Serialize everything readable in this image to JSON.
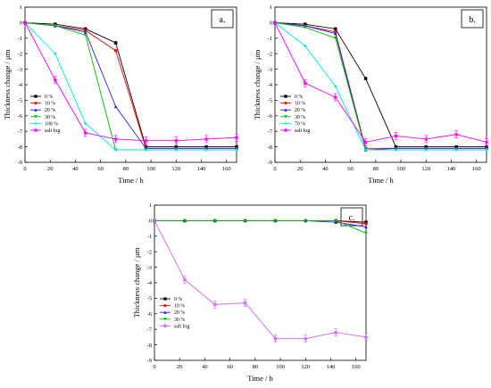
{
  "chart_data": [
    {
      "panel_label": "a.",
      "type": "line",
      "xlabel": "Time / h",
      "ylabel": "Thickness change / µm",
      "xlim": [
        0,
        168
      ],
      "ylim": [
        -9,
        1
      ],
      "x_ticks": [
        0,
        20,
        40,
        60,
        80,
        100,
        120,
        140,
        160
      ],
      "y_ticks": [
        1,
        0,
        -1,
        -2,
        -3,
        -4,
        -5,
        -6,
        -7,
        -8,
        -9
      ],
      "legend_position": "lower-left",
      "series": [
        {
          "name": "0 %",
          "color": "#000000",
          "marker": "square",
          "x": [
            0,
            24,
            48,
            72,
            96,
            120,
            144,
            168
          ],
          "y": [
            0,
            -0.1,
            -0.4,
            -1.3,
            -8.0,
            -8.0,
            -8.0,
            -8.0
          ]
        },
        {
          "name": "10 %",
          "color": "#ff0000",
          "marker": "circle",
          "x": [
            0,
            24,
            48,
            72,
            96,
            120,
            144,
            168
          ],
          "y": [
            0,
            -0.2,
            -0.5,
            -1.8,
            -8.1,
            -8.1,
            -8.1,
            -8.1
          ]
        },
        {
          "name": "20 %",
          "color": "#2020ff",
          "marker": "triangle-up",
          "x": [
            0,
            24,
            48,
            72,
            96,
            120,
            144,
            168
          ],
          "y": [
            0,
            -0.2,
            -0.6,
            -5.4,
            -8.1,
            -8.1,
            -8.1,
            -8.1
          ]
        },
        {
          "name": "30 %",
          "color": "#00bb00",
          "marker": "triangle-down",
          "x": [
            0,
            24,
            48,
            72,
            96,
            120,
            144,
            168
          ],
          "y": [
            0,
            -0.2,
            -0.8,
            -8.2,
            -8.2,
            -8.2,
            -8.2,
            -8.2
          ]
        },
        {
          "name": "100 %",
          "color": "#00e5ee",
          "marker": "diamond",
          "x": [
            0,
            24,
            48,
            72,
            96,
            120,
            144,
            168
          ],
          "y": [
            0,
            -2.0,
            -6.5,
            -8.2,
            -8.2,
            -8.2,
            -8.2,
            -8.2
          ]
        },
        {
          "name": "salt fog",
          "color": "#ff00ff",
          "marker": "star",
          "error_bars": true,
          "x": [
            0,
            24,
            48,
            72,
            96,
            120,
            144,
            168
          ],
          "y": [
            0,
            -3.7,
            -7.1,
            -7.5,
            -7.6,
            -7.6,
            -7.5,
            -7.4
          ]
        }
      ]
    },
    {
      "panel_label": "b.",
      "type": "line",
      "xlabel": "Time / h",
      "ylabel": "Thickness change / µm",
      "xlim": [
        0,
        168
      ],
      "ylim": [
        -9,
        1
      ],
      "x_ticks": [
        0,
        20,
        40,
        60,
        80,
        100,
        120,
        140,
        160
      ],
      "y_ticks": [
        1,
        0,
        -1,
        -2,
        -3,
        -4,
        -5,
        -6,
        -7,
        -8,
        -9
      ],
      "legend_position": "lower-left",
      "series": [
        {
          "name": "0 %",
          "color": "#000000",
          "marker": "square",
          "x": [
            0,
            24,
            48,
            72,
            96,
            120,
            144,
            168
          ],
          "y": [
            0,
            -0.1,
            -0.4,
            -3.6,
            -8.0,
            -8.0,
            -8.0,
            -8.0
          ]
        },
        {
          "name": "10 %",
          "color": "#ff0000",
          "marker": "circle",
          "x": [
            0,
            24,
            48,
            72,
            96,
            120,
            144,
            168
          ],
          "y": [
            0,
            -0.2,
            -0.6,
            -8.1,
            -8.1,
            -8.1,
            -8.1,
            -8.1
          ]
        },
        {
          "name": "20 %",
          "color": "#2020ff",
          "marker": "triangle-up",
          "x": [
            0,
            24,
            48,
            72,
            96,
            120,
            144,
            168
          ],
          "y": [
            0,
            -0.2,
            -0.7,
            -8.2,
            -8.1,
            -8.1,
            -8.1,
            -8.1
          ]
        },
        {
          "name": "30 %",
          "color": "#00bb00",
          "marker": "triangle-down",
          "x": [
            0,
            24,
            48,
            72,
            96,
            120,
            144,
            168
          ],
          "y": [
            0,
            -0.3,
            -1.0,
            -8.2,
            -8.2,
            -8.2,
            -8.2,
            -8.2
          ]
        },
        {
          "name": "70 %",
          "color": "#00e5ee",
          "marker": "diamond",
          "x": [
            0,
            24,
            48,
            72,
            96,
            120,
            144,
            168
          ],
          "y": [
            0,
            -1.5,
            -4.1,
            -8.2,
            -8.2,
            -8.2,
            -8.2,
            -8.2
          ]
        },
        {
          "name": "salt fog",
          "color": "#ff00ff",
          "marker": "star",
          "error_bars": true,
          "x": [
            0,
            24,
            48,
            72,
            96,
            120,
            144,
            168
          ],
          "y": [
            0,
            -3.9,
            -4.8,
            -7.7,
            -7.3,
            -7.5,
            -7.2,
            -7.7
          ]
        }
      ]
    },
    {
      "panel_label": "c.",
      "type": "line",
      "xlabel": "Time / h",
      "ylabel": "Thickness change / µm",
      "xlim": [
        0,
        168
      ],
      "ylim": [
        -9,
        1
      ],
      "x_ticks": [
        0,
        20,
        40,
        60,
        80,
        100,
        120,
        140,
        160
      ],
      "y_ticks": [
        1,
        0,
        -1,
        -2,
        -3,
        -4,
        -5,
        -6,
        -7,
        -8,
        -9
      ],
      "legend_position": "lower-left",
      "series": [
        {
          "name": "0 %",
          "color": "#000000",
          "marker": "square",
          "x": [
            0,
            24,
            48,
            72,
            96,
            120,
            144,
            168
          ],
          "y": [
            0,
            0,
            0,
            0,
            0,
            0,
            0,
            -0.1
          ]
        },
        {
          "name": "10 %",
          "color": "#ff0000",
          "marker": "circle",
          "x": [
            0,
            24,
            48,
            72,
            96,
            120,
            144,
            168
          ],
          "y": [
            0,
            0,
            0,
            0,
            0,
            0,
            0,
            -0.2
          ]
        },
        {
          "name": "20 %",
          "color": "#2020ff",
          "marker": "triangle-up",
          "x": [
            0,
            24,
            48,
            72,
            96,
            120,
            144,
            168
          ],
          "y": [
            0,
            0,
            0,
            0,
            0,
            0,
            -0.1,
            -0.4
          ]
        },
        {
          "name": "30 %",
          "color": "#00bb00",
          "marker": "triangle-down",
          "x": [
            0,
            24,
            48,
            72,
            96,
            120,
            144,
            168
          ],
          "y": [
            0,
            0,
            0,
            0,
            0,
            0,
            0,
            -0.8
          ]
        },
        {
          "name": "salt fog",
          "color": "#cc66ff",
          "marker": "star",
          "error_bars": true,
          "x": [
            0,
            24,
            48,
            72,
            96,
            120,
            144,
            168
          ],
          "y": [
            0,
            -3.8,
            -5.4,
            -5.3,
            -7.6,
            -7.6,
            -7.2,
            -7.5
          ]
        }
      ]
    }
  ]
}
